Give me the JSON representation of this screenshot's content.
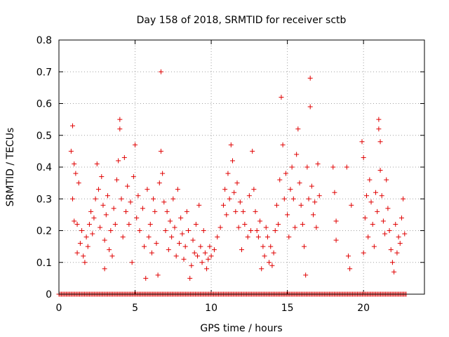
{
  "chart_data": {
    "type": "scatter",
    "title": "Day 158 of 2018, SRMTID for receiver sctb",
    "xlabel": "GPS time / hours",
    "ylabel": "SRMTID / TECUs",
    "xlim": [
      0,
      24
    ],
    "ylim": [
      0,
      0.8
    ],
    "x_ticks": [
      0,
      5,
      10,
      15,
      20
    ],
    "x_tick_labels": [
      "0",
      "5",
      "10",
      "15",
      "20"
    ],
    "y_ticks": [
      0,
      0.1,
      0.2,
      0.3,
      0.4,
      0.5,
      0.6,
      0.7,
      0.8
    ],
    "y_tick_labels": [
      "0",
      "0.1",
      "0.2",
      "0.3",
      "0.4",
      "0.5",
      "0.6",
      "0.7",
      "0.8"
    ],
    "grid": true,
    "marker": "+",
    "color": "#e00000",
    "series": [
      {
        "name": "SRMTID",
        "points": [
          [
            0.8,
            0.45
          ],
          [
            0.9,
            0.53
          ],
          [
            0.9,
            0.3
          ],
          [
            1.0,
            0.23
          ],
          [
            1.0,
            0.41
          ],
          [
            1.1,
            0.38
          ],
          [
            1.2,
            0.22
          ],
          [
            1.2,
            0.13
          ],
          [
            1.3,
            0.35
          ],
          [
            1.4,
            0.16
          ],
          [
            1.5,
            0.2
          ],
          [
            1.6,
            0.12
          ],
          [
            1.7,
            0.1
          ],
          [
            1.8,
            0.18
          ],
          [
            1.9,
            0.15
          ],
          [
            2.0,
            0.22
          ],
          [
            2.1,
            0.26
          ],
          [
            2.2,
            0.19
          ],
          [
            2.3,
            0.24
          ],
          [
            2.4,
            0.3
          ],
          [
            2.5,
            0.41
          ],
          [
            2.6,
            0.33
          ],
          [
            2.7,
            0.21
          ],
          [
            2.8,
            0.37
          ],
          [
            2.9,
            0.28
          ],
          [
            3.0,
            0.17
          ],
          [
            3.0,
            0.08
          ],
          [
            3.1,
            0.25
          ],
          [
            3.2,
            0.31
          ],
          [
            3.3,
            0.14
          ],
          [
            3.4,
            0.2
          ],
          [
            3.5,
            0.12
          ],
          [
            3.6,
            0.27
          ],
          [
            3.7,
            0.22
          ],
          [
            3.8,
            0.36
          ],
          [
            3.9,
            0.42
          ],
          [
            4.0,
            0.55
          ],
          [
            4.0,
            0.52
          ],
          [
            4.1,
            0.3
          ],
          [
            4.2,
            0.18
          ],
          [
            4.3,
            0.43
          ],
          [
            4.4,
            0.26
          ],
          [
            4.5,
            0.34
          ],
          [
            4.6,
            0.22
          ],
          [
            4.7,
            0.29
          ],
          [
            4.8,
            0.1
          ],
          [
            4.9,
            0.37
          ],
          [
            5.0,
            0.47
          ],
          [
            5.1,
            0.24
          ],
          [
            5.2,
            0.31
          ],
          [
            5.3,
            0.2
          ],
          [
            5.5,
            0.27
          ],
          [
            5.6,
            0.15
          ],
          [
            5.7,
            0.05
          ],
          [
            5.8,
            0.33
          ],
          [
            5.9,
            0.18
          ],
          [
            6.0,
            0.22
          ],
          [
            6.1,
            0.13
          ],
          [
            6.2,
            0.3
          ],
          [
            6.3,
            0.26
          ],
          [
            6.4,
            0.16
          ],
          [
            6.5,
            0.06
          ],
          [
            6.6,
            0.35
          ],
          [
            6.7,
            0.7
          ],
          [
            6.7,
            0.45
          ],
          [
            6.8,
            0.38
          ],
          [
            6.9,
            0.29
          ],
          [
            7.0,
            0.2
          ],
          [
            7.1,
            0.26
          ],
          [
            7.2,
            0.14
          ],
          [
            7.3,
            0.23
          ],
          [
            7.4,
            0.18
          ],
          [
            7.5,
            0.3
          ],
          [
            7.6,
            0.21
          ],
          [
            7.7,
            0.12
          ],
          [
            7.8,
            0.33
          ],
          [
            7.9,
            0.16
          ],
          [
            8.0,
            0.24
          ],
          [
            8.1,
            0.19
          ],
          [
            8.2,
            0.11
          ],
          [
            8.3,
            0.15
          ],
          [
            8.4,
            0.26
          ],
          [
            8.5,
            0.2
          ],
          [
            8.6,
            0.05
          ],
          [
            8.7,
            0.09
          ],
          [
            8.8,
            0.17
          ],
          [
            8.9,
            0.13
          ],
          [
            9.0,
            0.22
          ],
          [
            9.1,
            0.12
          ],
          [
            9.2,
            0.28
          ],
          [
            9.3,
            0.15
          ],
          [
            9.4,
            0.1
          ],
          [
            9.5,
            0.2
          ],
          [
            9.6,
            0.13
          ],
          [
            9.7,
            0.08
          ],
          [
            9.8,
            0.11
          ],
          [
            9.9,
            0.15
          ],
          [
            10.0,
            0.12
          ],
          [
            10.2,
            0.14
          ],
          [
            10.4,
            0.18
          ],
          [
            10.6,
            0.21
          ],
          [
            10.8,
            0.28
          ],
          [
            10.9,
            0.33
          ],
          [
            11.0,
            0.25
          ],
          [
            11.1,
            0.38
          ],
          [
            11.2,
            0.3
          ],
          [
            11.3,
            0.47
          ],
          [
            11.4,
            0.42
          ],
          [
            11.5,
            0.32
          ],
          [
            11.6,
            0.26
          ],
          [
            11.7,
            0.35
          ],
          [
            11.8,
            0.21
          ],
          [
            11.9,
            0.29
          ],
          [
            12.0,
            0.14
          ],
          [
            12.1,
            0.26
          ],
          [
            12.2,
            0.22
          ],
          [
            12.4,
            0.18
          ],
          [
            12.5,
            0.31
          ],
          [
            12.6,
            0.2
          ],
          [
            12.7,
            0.45
          ],
          [
            12.8,
            0.33
          ],
          [
            12.9,
            0.26
          ],
          [
            13.0,
            0.2
          ],
          [
            13.1,
            0.18
          ],
          [
            13.2,
            0.23
          ],
          [
            13.3,
            0.08
          ],
          [
            13.4,
            0.15
          ],
          [
            13.5,
            0.12
          ],
          [
            13.6,
            0.21
          ],
          [
            13.7,
            0.18
          ],
          [
            13.8,
            0.1
          ],
          [
            13.9,
            0.15
          ],
          [
            14.0,
            0.09
          ],
          [
            14.1,
            0.13
          ],
          [
            14.2,
            0.2
          ],
          [
            14.3,
            0.28
          ],
          [
            14.4,
            0.22
          ],
          [
            14.5,
            0.36
          ],
          [
            14.6,
            0.62
          ],
          [
            14.7,
            0.47
          ],
          [
            14.8,
            0.3
          ],
          [
            14.9,
            0.38
          ],
          [
            15.0,
            0.25
          ],
          [
            15.1,
            0.18
          ],
          [
            15.2,
            0.33
          ],
          [
            15.3,
            0.4
          ],
          [
            15.4,
            0.3
          ],
          [
            15.5,
            0.21
          ],
          [
            15.6,
            0.44
          ],
          [
            15.7,
            0.52
          ],
          [
            15.8,
            0.35
          ],
          [
            15.9,
            0.28
          ],
          [
            16.0,
            0.22
          ],
          [
            16.1,
            0.15
          ],
          [
            16.2,
            0.06
          ],
          [
            16.3,
            0.4
          ],
          [
            16.4,
            0.3
          ],
          [
            16.5,
            0.68
          ],
          [
            16.5,
            0.59
          ],
          [
            16.6,
            0.34
          ],
          [
            16.7,
            0.25
          ],
          [
            16.8,
            0.29
          ],
          [
            16.9,
            0.21
          ],
          [
            17.0,
            0.41
          ],
          [
            17.1,
            0.31
          ],
          [
            18.0,
            0.4
          ],
          [
            18.1,
            0.32
          ],
          [
            18.2,
            0.23
          ],
          [
            18.2,
            0.17
          ],
          [
            18.9,
            0.4
          ],
          [
            19.0,
            0.12
          ],
          [
            19.1,
            0.08
          ],
          [
            19.2,
            0.28
          ],
          [
            19.9,
            0.48
          ],
          [
            20.0,
            0.43
          ],
          [
            20.0,
            0.13
          ],
          [
            20.1,
            0.24
          ],
          [
            20.2,
            0.31
          ],
          [
            20.3,
            0.18
          ],
          [
            20.4,
            0.36
          ],
          [
            20.5,
            0.29
          ],
          [
            20.6,
            0.22
          ],
          [
            20.7,
            0.15
          ],
          [
            20.8,
            0.32
          ],
          [
            20.9,
            0.26
          ],
          [
            21.0,
            0.55
          ],
          [
            21.0,
            0.52
          ],
          [
            21.1,
            0.48
          ],
          [
            21.1,
            0.39
          ],
          [
            21.2,
            0.31
          ],
          [
            21.3,
            0.23
          ],
          [
            21.4,
            0.19
          ],
          [
            21.5,
            0.36
          ],
          [
            21.6,
            0.27
          ],
          [
            21.7,
            0.2
          ],
          [
            21.8,
            0.14
          ],
          [
            21.9,
            0.1
          ],
          [
            22.0,
            0.07
          ],
          [
            22.1,
            0.22
          ],
          [
            22.2,
            0.13
          ],
          [
            22.3,
            0.18
          ],
          [
            22.4,
            0.16
          ],
          [
            22.5,
            0.24
          ],
          [
            22.6,
            0.3
          ],
          [
            22.7,
            0.19
          ]
        ]
      }
    ],
    "zero_points_x_range": [
      0,
      22.8
    ]
  }
}
